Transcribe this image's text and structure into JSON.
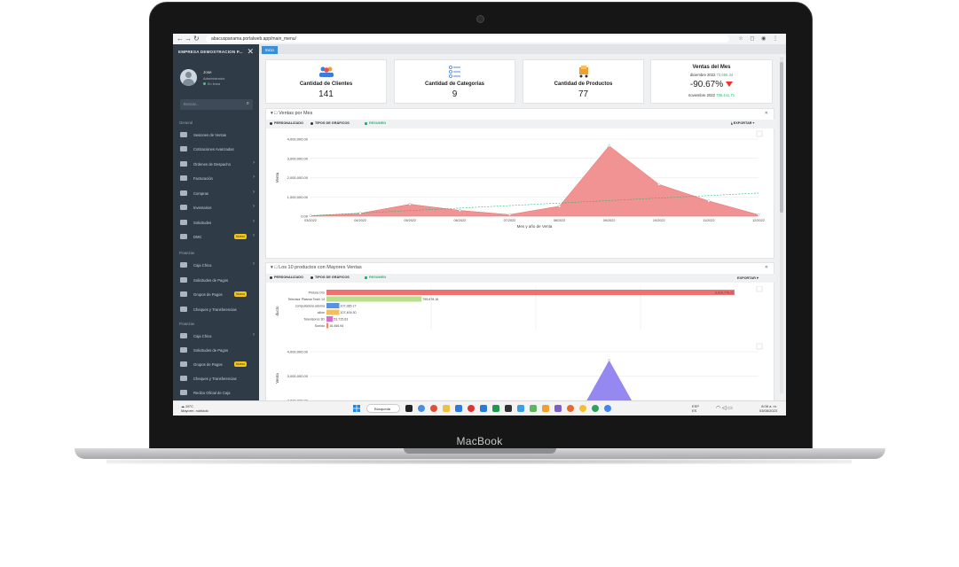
{
  "device": {
    "brand": "MacBook"
  },
  "browser": {
    "url": "abacuspanama.portalweb.app/main_menu/"
  },
  "sidebar": {
    "company": "EMPRESA DEMOSTRACION P...",
    "user": {
      "name": "Jose",
      "role": "Administrador",
      "status": "En línea"
    },
    "search_placeholder": "Buscar...",
    "sections": [
      {
        "title": "General",
        "items": [
          {
            "label": "Sesiones de Ventas"
          },
          {
            "label": "Cotizaciones Avanzadas"
          },
          {
            "label": "Órdenes de Despacho"
          },
          {
            "label": "Facturación"
          },
          {
            "label": "Compras"
          },
          {
            "label": "Inventarios"
          },
          {
            "label": "Solicitudes"
          },
          {
            "label": "DMC",
            "badge": "Nuevo"
          }
        ]
      },
      {
        "title": "Finanzas",
        "items": [
          {
            "label": "Caja Chica"
          },
          {
            "label": "Solicitudes de Pagos"
          },
          {
            "label": "Grupos de Pagos",
            "badge": "Nuevo"
          },
          {
            "label": "Cheques y Transferencias"
          }
        ]
      },
      {
        "title": "Finanzas",
        "items": [
          {
            "label": "Caja Chica"
          },
          {
            "label": "Solicitudes de Pagos"
          },
          {
            "label": "Grupos de Pagos",
            "badge": "Nuevo"
          },
          {
            "label": "Cheques y Transferencias"
          },
          {
            "label": "Recibo Oficial de Caja"
          }
        ]
      }
    ]
  },
  "main": {
    "tab": "Inicio",
    "cards": [
      {
        "title": "Cantidad de Clientes",
        "value": "141",
        "icon": "users-icon"
      },
      {
        "title": "Cantidad de Categorias",
        "value": "9",
        "icon": "list-icon"
      },
      {
        "title": "Cantidad de Productos",
        "value": "77",
        "icon": "cart-icon"
      }
    ],
    "sales": {
      "title": "Ventas del Mes",
      "current_label": "diciembre 2022",
      "current_value": "73,650.34",
      "change": "-90.67%",
      "previous_label": "noviembre 2022",
      "previous_value": "789,441.71"
    },
    "toolbar": {
      "custom": "PERSONALIZADO",
      "types": "TIPOS DE GRÁFICOS",
      "summary": "RESUMEN",
      "export": "EXPORTAR"
    }
  },
  "chart_data": [
    {
      "type": "area",
      "title": "Ventas por Mes",
      "xlabel": "Mes y año de Venta",
      "ylabel": "Venta",
      "ylim": [
        0,
        4000000
      ],
      "yticks": [
        "4,000,000.00",
        "3,000,000.00",
        "2,000,000.00",
        "1,000,000.00",
        "0.00"
      ],
      "categories": [
        "03/2022",
        "04/2022",
        "05/2022",
        "06/2022",
        "07/2022",
        "08/2022",
        "09/2022",
        "10/2022",
        "11/2022",
        "12/2022"
      ],
      "series": [
        {
          "values": [
            20000,
            150000,
            620000,
            300000,
            80000,
            520000,
            3650000,
            1650000,
            790000,
            73650
          ],
          "color": "#f08080"
        }
      ],
      "trendline": true
    },
    {
      "type": "bar",
      "title": "Los 10 productos con Mayores Ventas",
      "ylabel": "ducto",
      "orientation": "horizontal",
      "categories": [
        "Pintura Oro",
        "Televisor Plasma Toshi 14",
        "computadora adorna",
        "sillon",
        "Televisores 3D",
        "Sonido"
      ],
      "values": [
        3410776.22,
        795678.16,
        107385.17,
        107409.3,
        53715.63,
        16456.94
      ],
      "value_labels": [
        "3,410,776.22",
        "795,678.16",
        "107,385.17",
        "107,409.30",
        "53,715.63",
        "16,456.94"
      ],
      "colors": [
        "#f07070",
        "#b8e08a",
        "#5b8fe8",
        "#f0c060",
        "#d070d0",
        "#f08a5a"
      ]
    },
    {
      "type": "area",
      "ylabel": "Venta",
      "ylim": [
        0,
        4000000
      ],
      "yticks": [
        "4,000,000.00",
        "3,000,000.00",
        "2,000,000.00"
      ],
      "series": [
        {
          "values": [
            0,
            0,
            0,
            0,
            0,
            0,
            3650000,
            0,
            0,
            0
          ],
          "color": "#8a7cf0"
        }
      ]
    }
  ],
  "taskbar": {
    "weather_temp": "28°C",
    "weather_desc": "Mayorm. nublado",
    "search": "Búsqueda",
    "lang_top": "ESP",
    "lang_bottom": "ES",
    "time": "8:08 a. m.",
    "date": "03/08/2023"
  }
}
